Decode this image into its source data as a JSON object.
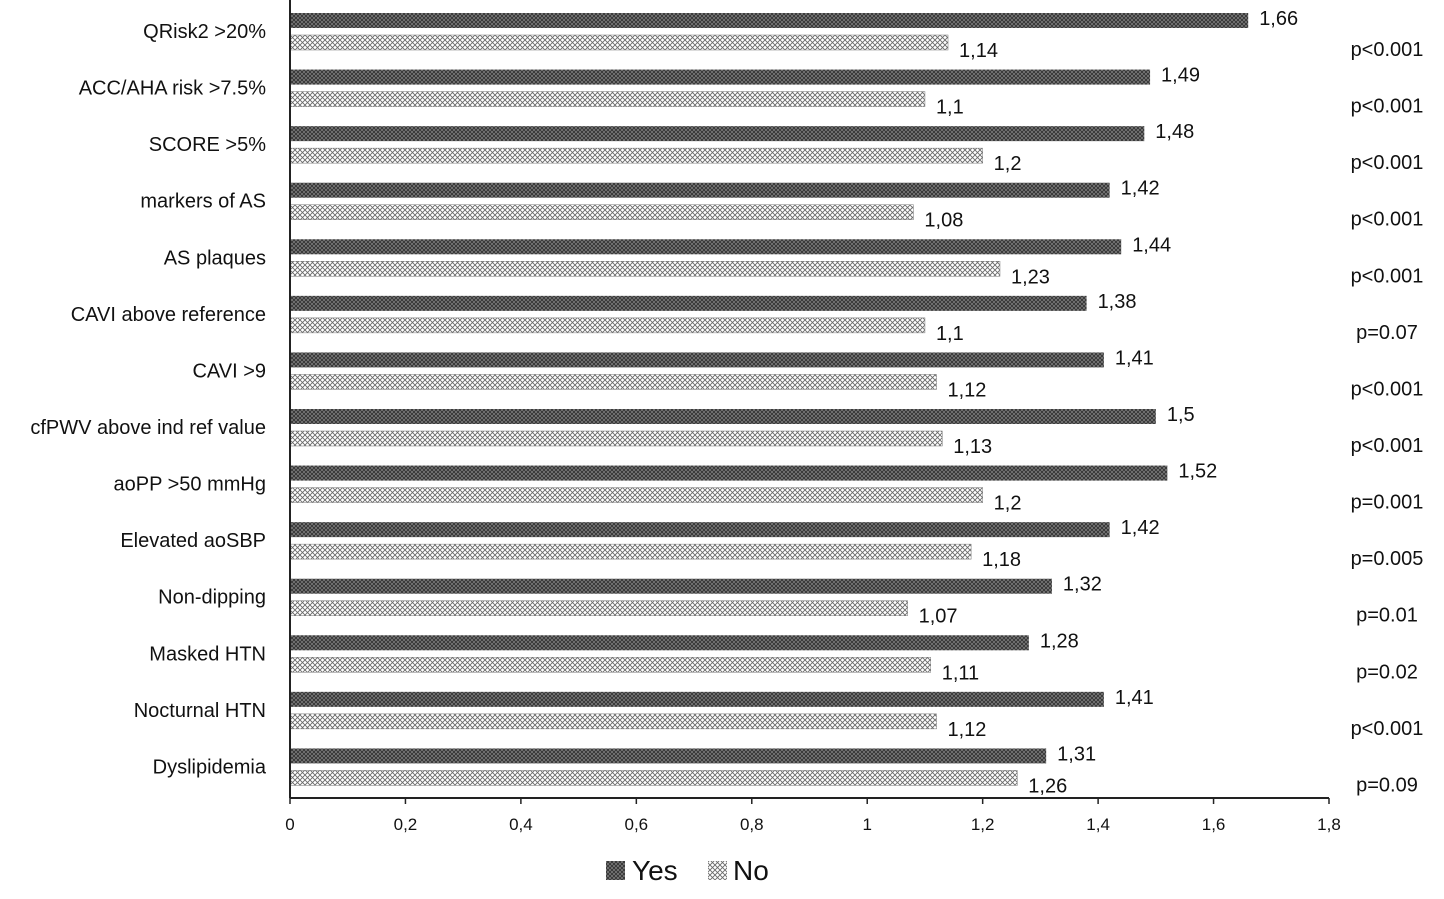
{
  "chart_data": {
    "type": "bar",
    "orientation": "horizontal",
    "categories": [
      "QRisk2 >20%",
      "ACC/AHA risk >7.5%",
      "SCORE >5%",
      "markers of AS",
      "AS plaques",
      "CAVI above reference",
      "CAVI >9",
      "cfPWV above ind ref value",
      "aoPP >50 mmHg",
      "Elevated aoSBP",
      "Non-dipping",
      "Masked HTN",
      "Nocturnal HTN",
      "Dyslipidemia"
    ],
    "series": [
      {
        "name": "Yes",
        "values": [
          1.66,
          1.49,
          1.48,
          1.42,
          1.44,
          1.38,
          1.41,
          1.5,
          1.52,
          1.42,
          1.32,
          1.28,
          1.41,
          1.31
        ],
        "labels": [
          "1,66",
          "1,49",
          "1,48",
          "1,42",
          "1,44",
          "1,38",
          "1,41",
          "1,5",
          "1,52",
          "1,42",
          "1,32",
          "1,28",
          "1,41",
          "1,31"
        ]
      },
      {
        "name": "No",
        "values": [
          1.14,
          1.1,
          1.2,
          1.08,
          1.23,
          1.1,
          1.12,
          1.13,
          1.2,
          1.18,
          1.07,
          1.11,
          1.12,
          1.26
        ],
        "labels": [
          "1,14",
          "1,1",
          "1,2",
          "1,08",
          "1,23",
          "1,1",
          "1,12",
          "1,13",
          "1,2",
          "1,18",
          "1,07",
          "1,11",
          "1,12",
          "1,26"
        ]
      }
    ],
    "p_values": [
      "p<0.001",
      "p<0.001",
      "p<0.001",
      "p<0.001",
      "p<0.001",
      "p=0.07",
      "p<0.001",
      "p<0.001",
      "p=0.001",
      "p=0.005",
      "p=0.01",
      "p=0.02",
      "p<0.001",
      "p=0.09"
    ],
    "x_ticks": [
      "0",
      "0,2",
      "0,4",
      "0,6",
      "0,8",
      "1",
      "1,2",
      "1,4",
      "1,6",
      "1,8"
    ],
    "xlim": [
      0,
      1.8
    ],
    "legend_position": "bottom-center",
    "grid": false,
    "colors": {
      "yes_fill": "#4a4a4a",
      "no_fill": "#ffffff",
      "no_pattern": "#555555",
      "text": "#111111",
      "axis": "#222222"
    }
  }
}
